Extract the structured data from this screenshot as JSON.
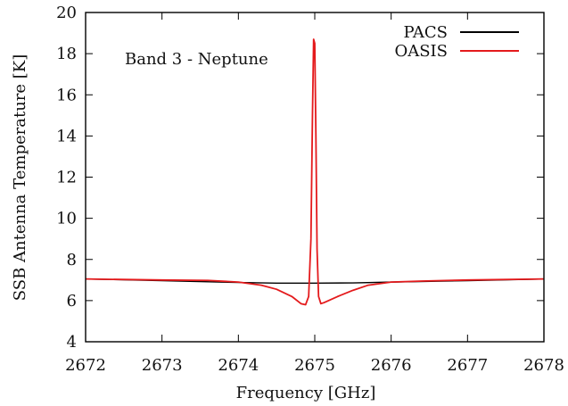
{
  "chart_data": {
    "type": "line",
    "title": "",
    "xlabel": "Frequency [GHz]",
    "ylabel": "SSB Antenna Temperature [K]",
    "xlim": [
      2672,
      2678
    ],
    "ylim": [
      4,
      20
    ],
    "xticks": [
      2672,
      2673,
      2674,
      2675,
      2676,
      2677,
      2678
    ],
    "yticks": [
      4,
      6,
      8,
      10,
      12,
      14,
      16,
      18,
      20
    ],
    "grid": false,
    "legend_position": "top-right",
    "annotation": "Band 3 - Neptune",
    "series": [
      {
        "name": "PACS",
        "color": "#000000",
        "x": [
          2672.0,
          2673.0,
          2674.0,
          2674.5,
          2675.0,
          2675.5,
          2676.0,
          2677.0,
          2678.0
        ],
        "y": [
          7.05,
          6.97,
          6.88,
          6.85,
          6.85,
          6.86,
          6.9,
          6.97,
          7.05
        ]
      },
      {
        "name": "OASIS",
        "color": "#e41a1c",
        "x": [
          2672.0,
          2673.0,
          2673.6,
          2674.0,
          2674.3,
          2674.5,
          2674.7,
          2674.82,
          2674.88,
          2674.92,
          2674.95,
          2674.97,
          2674.985,
          2675.0,
          2675.015,
          2675.03,
          2675.05,
          2675.08,
          2675.12,
          2675.3,
          2675.5,
          2675.7,
          2676.0,
          2676.4,
          2677.0,
          2678.0
        ],
        "y": [
          7.05,
          7.0,
          6.98,
          6.9,
          6.75,
          6.55,
          6.2,
          5.85,
          5.8,
          6.2,
          9.0,
          15.0,
          18.7,
          18.5,
          14.0,
          8.5,
          6.2,
          5.85,
          5.9,
          6.2,
          6.5,
          6.75,
          6.9,
          6.95,
          7.0,
          7.05
        ]
      }
    ]
  }
}
